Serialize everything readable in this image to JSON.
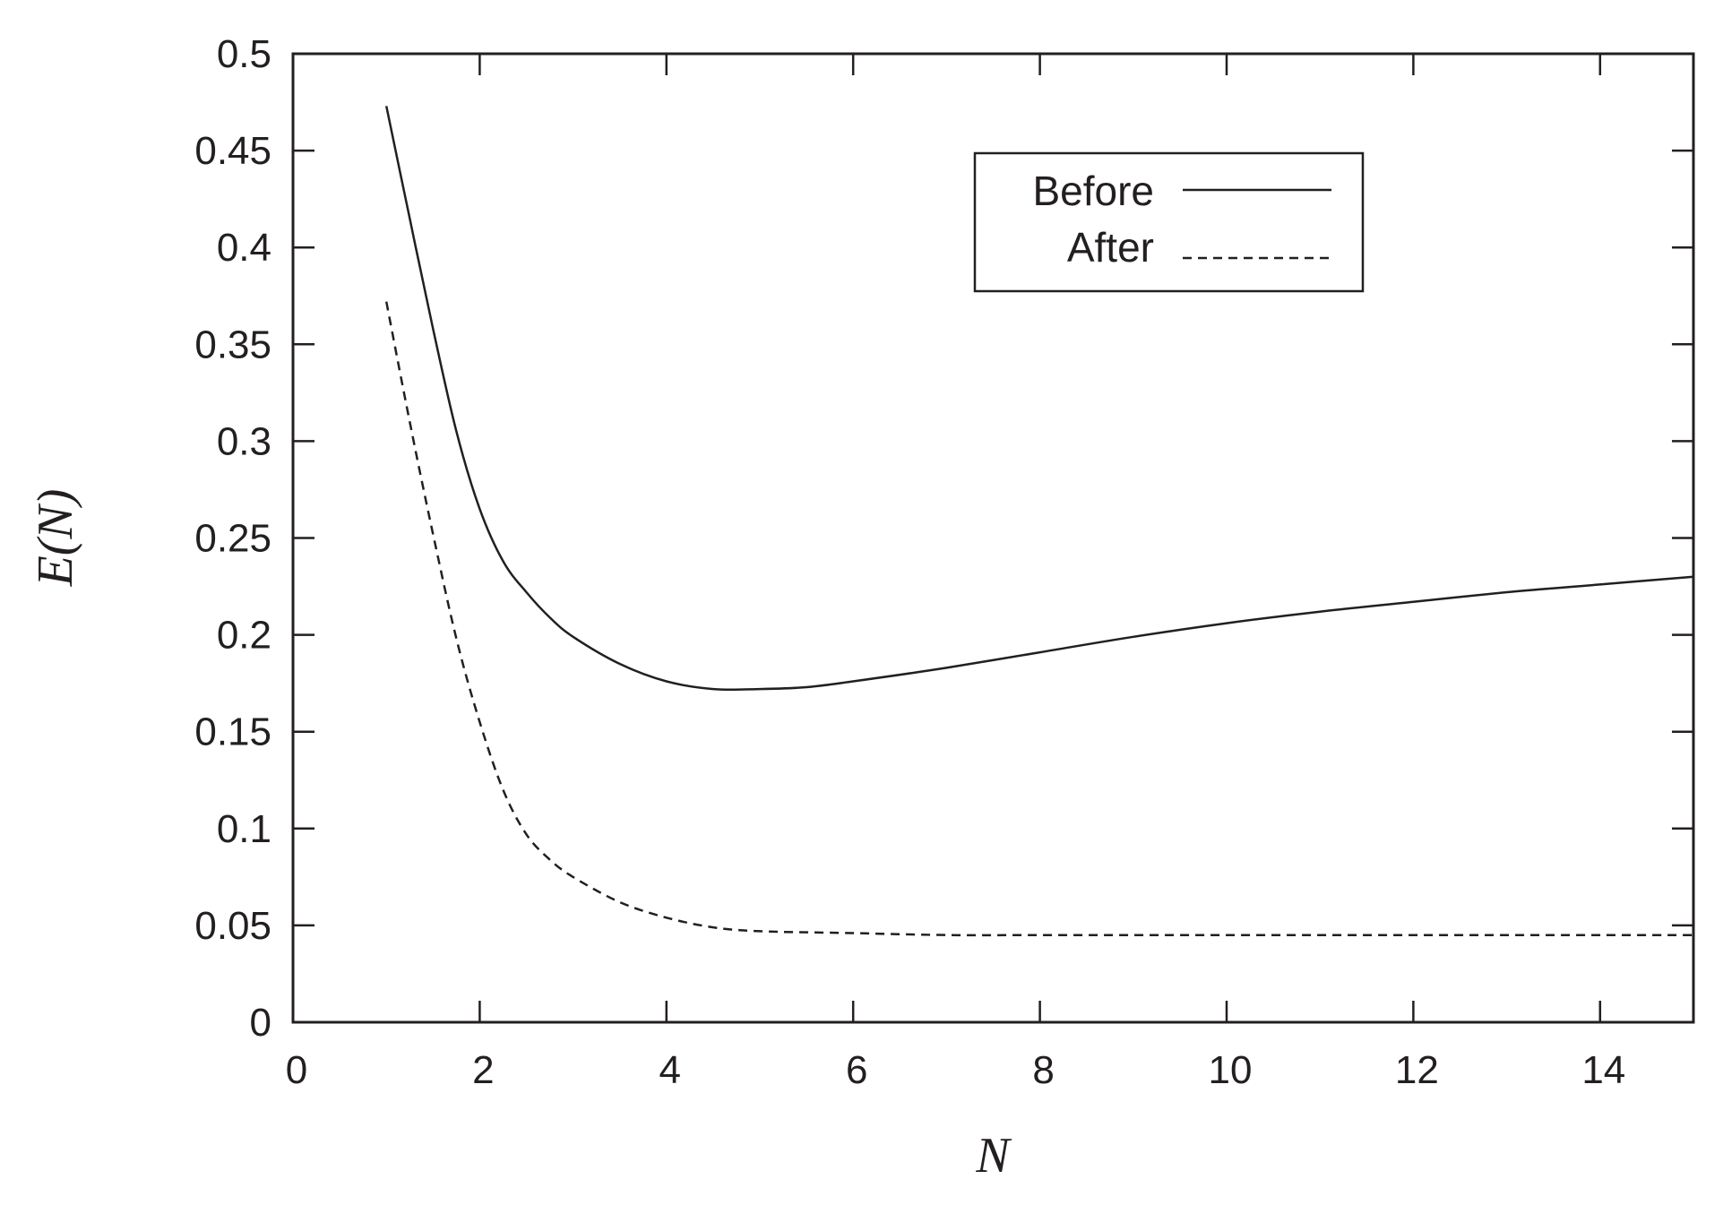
{
  "chart_data": {
    "type": "line",
    "xlabel": "N",
    "ylabel": "E(N)",
    "xlim": [
      0,
      15
    ],
    "ylim": [
      0,
      0.5
    ],
    "xticks": [
      0,
      2,
      4,
      6,
      8,
      10,
      12,
      14
    ],
    "yticks": [
      0,
      0.05,
      0.1,
      0.15,
      0.2,
      0.25,
      0.3,
      0.35,
      0.4,
      0.45,
      0.5
    ],
    "xtick_labels": [
      "0",
      "2",
      "4",
      "6",
      "8",
      "10",
      "12",
      "14"
    ],
    "ytick_labels": [
      "0",
      "0.05",
      "0.1",
      "0.15",
      "0.2",
      "0.25",
      "0.3",
      "0.35",
      "0.4",
      "0.45",
      "0.5"
    ],
    "grid": false,
    "legend_position": "top-right",
    "series": [
      {
        "name": "Before",
        "style": "solid",
        "color": "#231f20",
        "x": [
          1.0,
          1.25,
          1.5,
          1.75,
          2.0,
          2.25,
          2.5,
          2.75,
          3.0,
          3.5,
          4.0,
          4.5,
          5.0,
          5.5,
          6.0,
          7.0,
          8.0,
          9.0,
          10.0,
          11.0,
          12.0,
          13.0,
          14.0,
          15.0
        ],
        "y": [
          0.473,
          0.415,
          0.358,
          0.305,
          0.265,
          0.238,
          0.222,
          0.209,
          0.199,
          0.185,
          0.176,
          0.172,
          0.172,
          0.173,
          0.176,
          0.183,
          0.191,
          0.199,
          0.206,
          0.212,
          0.217,
          0.222,
          0.226,
          0.23
        ]
      },
      {
        "name": "After",
        "style": "dashed",
        "color": "#231f20",
        "x": [
          1.0,
          1.25,
          1.5,
          1.75,
          2.0,
          2.25,
          2.5,
          2.75,
          3.0,
          3.5,
          4.0,
          4.5,
          5.0,
          6.0,
          7.0,
          8.0,
          9.0,
          10.0,
          11.0,
          12.0,
          13.0,
          14.0,
          15.0
        ],
        "y": [
          0.372,
          0.31,
          0.252,
          0.198,
          0.155,
          0.12,
          0.097,
          0.084,
          0.075,
          0.062,
          0.054,
          0.049,
          0.047,
          0.046,
          0.045,
          0.045,
          0.045,
          0.045,
          0.045,
          0.045,
          0.045,
          0.045,
          0.045
        ]
      }
    ]
  }
}
